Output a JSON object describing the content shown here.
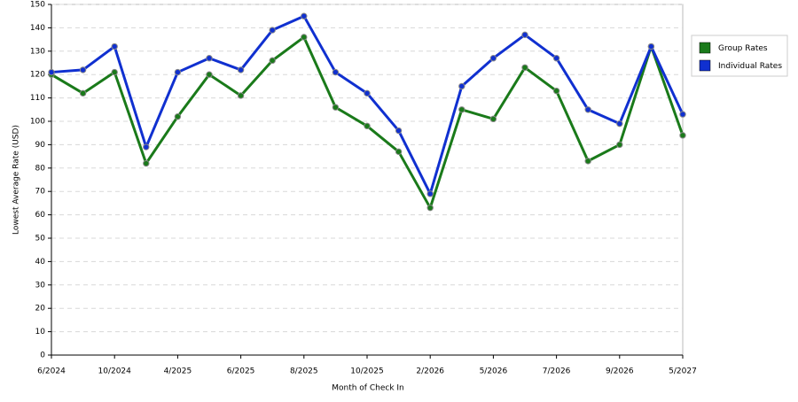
{
  "chart_data": {
    "type": "line",
    "x_label": "Month of Check In",
    "y_label": "Lowest Average Rate (USD)",
    "categories": [
      "6/2024",
      null,
      "10/2024",
      null,
      "4/2025",
      null,
      "6/2025",
      null,
      "8/2025",
      null,
      "10/2025",
      null,
      "2/2026",
      null,
      "5/2026",
      null,
      "7/2026",
      null,
      "9/2026",
      null,
      "5/2027"
    ],
    "series": [
      {
        "name": "Group Rates",
        "color": "#1a7a1a",
        "values": [
          120,
          112,
          121,
          82,
          102,
          120,
          111,
          126,
          136,
          106,
          98,
          87,
          63,
          105,
          101,
          123,
          113,
          83,
          90,
          132,
          94
        ]
      },
      {
        "name": "Individual Rates",
        "color": "#1030d0",
        "values": [
          121,
          122,
          132,
          89,
          121,
          127,
          122,
          139,
          145,
          121,
          112,
          96,
          69,
          115,
          127,
          137,
          127,
          105,
          99,
          132,
          103
        ]
      }
    ],
    "ylim": [
      0,
      150
    ],
    "yticks": [
      0,
      10,
      20,
      30,
      40,
      50,
      60,
      70,
      80,
      90,
      100,
      110,
      120,
      130,
      140,
      150
    ],
    "grid": true,
    "legend": "right"
  }
}
